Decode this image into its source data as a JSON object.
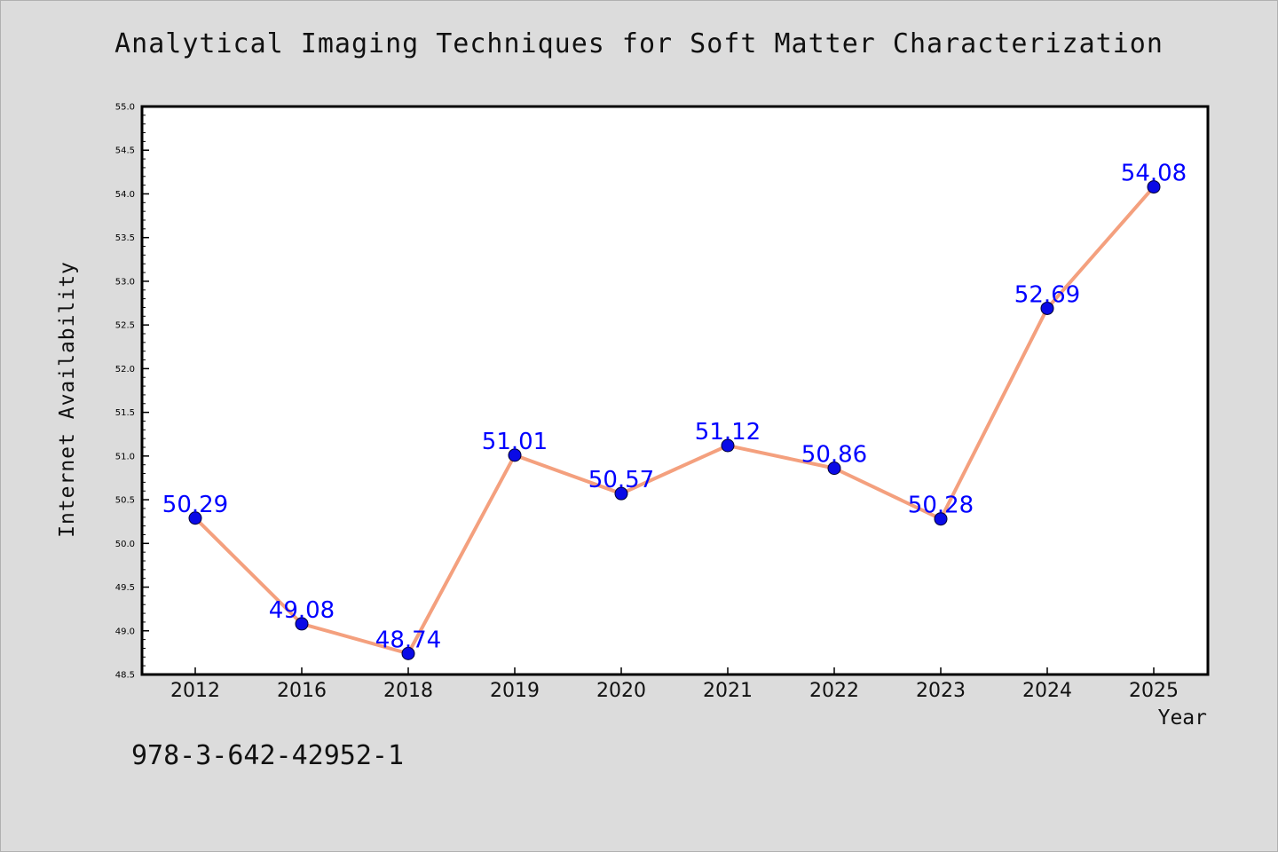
{
  "chart_data": {
    "type": "line",
    "title": "Analytical Imaging Techniques for Soft Matter Characterization",
    "xlabel": "Year",
    "ylabel": "Internet Availability",
    "categories": [
      "2012",
      "2016",
      "2018",
      "2019",
      "2020",
      "2021",
      "2022",
      "2023",
      "2024",
      "2025"
    ],
    "series": [
      {
        "values": [
          50.29,
          49.08,
          48.74,
          51.01,
          50.57,
          51.12,
          50.86,
          50.28,
          52.69,
          54.08
        ]
      }
    ],
    "data_labels": [
      "50.29",
      "49.08",
      "48.74",
      "51.01",
      "50.57",
      "51.12",
      "50.86",
      "50.28",
      "52.69",
      "54.08"
    ],
    "ylim": [
      48.5,
      55.0
    ],
    "yticks": [
      "48.5",
      "49.0",
      "49.5",
      "50.0",
      "50.5",
      "51.0",
      "51.5",
      "52.0",
      "52.5",
      "53.0",
      "53.5",
      "54.0",
      "54.5",
      "55.0"
    ],
    "grid": false,
    "line_color": "#f4a07e",
    "marker_color": "#0a0ae6",
    "label_color": "#0000ff"
  },
  "footer": {
    "isbn": "978-3-642-42952-1"
  }
}
